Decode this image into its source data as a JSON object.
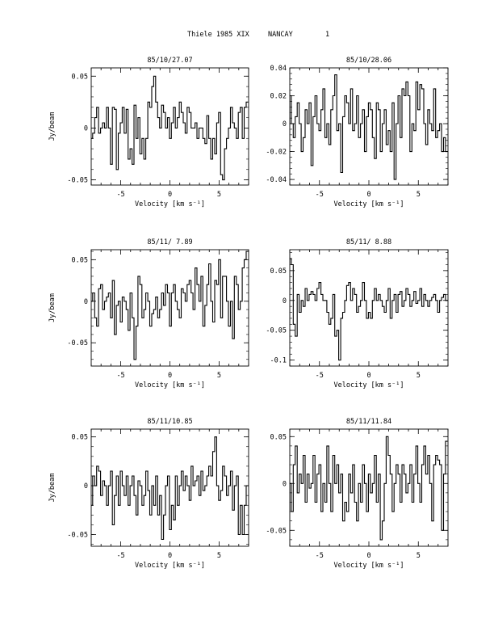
{
  "page_title": {
    "left": "Thiele 1985 XIX",
    "site": "NANCAY",
    "page": "1"
  },
  "chart_data": [
    {
      "type": "line",
      "title": "85/10/27.07",
      "xlabel": "Velocity [km s⁻¹]",
      "ylabel": "Jy/beam",
      "xlim": [
        -8,
        8
      ],
      "ylim": [
        -0.055,
        0.058
      ],
      "xticks": [
        "-5",
        "0",
        "5"
      ],
      "ytick_values": [
        0.05,
        0,
        -0.05
      ],
      "ytick_labels": [
        "0.05",
        "0",
        "-0.05"
      ],
      "x": [
        -7.95,
        -7.75,
        -7.55,
        -7.35,
        -7.15,
        -6.95,
        -6.75,
        -6.55,
        -6.35,
        -6.15,
        -5.95,
        -5.75,
        -5.55,
        -5.35,
        -5.15,
        -4.95,
        -4.75,
        -4.55,
        -4.35,
        -4.15,
        -3.95,
        -3.75,
        -3.55,
        -3.35,
        -3.15,
        -2.95,
        -2.75,
        -2.55,
        -2.35,
        -2.15,
        -1.95,
        -1.75,
        -1.55,
        -1.35,
        -1.15,
        -0.95,
        -0.75,
        -0.55,
        -0.35,
        -0.15,
        0.05,
        0.25,
        0.45,
        0.65,
        0.85,
        1.05,
        1.25,
        1.45,
        1.65,
        1.85,
        2.05,
        2.25,
        2.45,
        2.65,
        2.85,
        3.05,
        3.25,
        3.45,
        3.65,
        3.85,
        4.05,
        4.25,
        4.45,
        4.65,
        4.85,
        5.05,
        5.25,
        5.45,
        5.65,
        5.85,
        6.05,
        6.25,
        6.45,
        6.65,
        6.85,
        7.05,
        7.25,
        7.45,
        7.65,
        7.85
      ],
      "y": [
        -0.01,
        -0.005,
        0.01,
        0.02,
        -0.005,
        0.0,
        0.005,
        0.0,
        0.02,
        0.0,
        -0.035,
        0.02,
        0.018,
        -0.04,
        -0.005,
        0.005,
        0.02,
        -0.005,
        0.018,
        -0.03,
        -0.02,
        -0.035,
        0.022,
        -0.01,
        0.01,
        -0.025,
        -0.01,
        -0.03,
        -0.01,
        0.025,
        0.02,
        0.04,
        0.05,
        0.025,
        0.01,
        0.0,
        0.022,
        0.015,
        0.0,
        0.01,
        -0.01,
        0.005,
        0.02,
        0.0,
        0.01,
        0.025,
        0.015,
        0.005,
        -0.005,
        0.02,
        0.015,
        0.0,
        0.0,
        0.005,
        -0.01,
        0.0,
        0.0,
        -0.01,
        -0.015,
        0.012,
        -0.01,
        -0.03,
        -0.01,
        -0.025,
        0.005,
        0.015,
        -0.045,
        -0.05,
        -0.02,
        -0.01,
        0.0,
        0.02,
        0.005,
        0.0,
        -0.01,
        0.015,
        0.02,
        -0.01,
        0.02,
        0.025
      ]
    },
    {
      "type": "line",
      "title": "85/10/28.06",
      "xlabel": "Velocity [km s⁻¹]",
      "ylabel": "",
      "xlim": [
        -8,
        8
      ],
      "ylim": [
        -0.044,
        0.04
      ],
      "xticks": [
        "-5",
        "0",
        "5"
      ],
      "ytick_values": [
        0.04,
        0.02,
        0,
        -0.02,
        -0.04
      ],
      "ytick_labels": [
        "0.04",
        "0.02",
        "0",
        "-0.02",
        "-0.04"
      ],
      "x": [
        -7.95,
        -7.75,
        -7.55,
        -7.35,
        -7.15,
        -6.95,
        -6.75,
        -6.55,
        -6.35,
        -6.15,
        -5.95,
        -5.75,
        -5.55,
        -5.35,
        -5.15,
        -4.95,
        -4.75,
        -4.55,
        -4.35,
        -4.15,
        -3.95,
        -3.75,
        -3.55,
        -3.35,
        -3.15,
        -2.95,
        -2.75,
        -2.55,
        -2.35,
        -2.15,
        -1.95,
        -1.75,
        -1.55,
        -1.35,
        -1.15,
        -0.95,
        -0.75,
        -0.55,
        -0.35,
        -0.15,
        0.05,
        0.25,
        0.45,
        0.65,
        0.85,
        1.05,
        1.25,
        1.45,
        1.65,
        1.85,
        2.05,
        2.25,
        2.45,
        2.65,
        2.85,
        3.05,
        3.25,
        3.45,
        3.65,
        3.85,
        4.05,
        4.25,
        4.45,
        4.65,
        4.85,
        5.05,
        5.25,
        5.45,
        5.65,
        5.85,
        6.05,
        6.25,
        6.45,
        6.65,
        6.85,
        7.05,
        7.25,
        7.45,
        7.65,
        7.85
      ],
      "y": [
        0.02,
        0.0,
        -0.01,
        0.005,
        0.015,
        0.0,
        -0.02,
        -0.01,
        0.01,
        0.0,
        0.015,
        -0.03,
        0.005,
        0.02,
        0.0,
        -0.005,
        0.01,
        0.025,
        -0.01,
        0.0,
        -0.015,
        0.01,
        0.02,
        0.035,
        -0.005,
        0.0,
        -0.035,
        0.005,
        0.02,
        0.015,
        0.0,
        0.025,
        -0.005,
        0.0,
        0.02,
        -0.01,
        0.0,
        0.01,
        -0.02,
        0.005,
        0.015,
        0.01,
        -0.01,
        -0.025,
        0.015,
        0.01,
        -0.02,
        0.0,
        0.01,
        -0.015,
        -0.005,
        -0.02,
        0.015,
        -0.04,
        0.0,
        0.02,
        -0.01,
        0.025,
        0.02,
        0.03,
        0.02,
        -0.02,
        0.0,
        -0.005,
        0.03,
        0.01,
        0.028,
        0.025,
        0.0,
        -0.015,
        0.01,
        0.0,
        -0.005,
        0.025,
        -0.01,
        -0.005,
        0.0,
        -0.02,
        -0.01,
        -0.02
      ]
    },
    {
      "type": "line",
      "title": "85/11/ 7.89",
      "xlabel": "Velocity [km s⁻¹]",
      "ylabel": "Jy/beam",
      "xlim": [
        -8,
        8
      ],
      "ylim": [
        -0.078,
        0.062
      ],
      "xticks": [
        "-5",
        "0",
        "5"
      ],
      "ytick_values": [
        0.05,
        0,
        -0.05
      ],
      "ytick_labels": [
        "0.05",
        "0",
        "-0.05"
      ],
      "x": [
        -7.95,
        -7.75,
        -7.55,
        -7.35,
        -7.15,
        -6.95,
        -6.75,
        -6.55,
        -6.35,
        -6.15,
        -5.95,
        -5.75,
        -5.55,
        -5.35,
        -5.15,
        -4.95,
        -4.75,
        -4.55,
        -4.35,
        -4.15,
        -3.95,
        -3.75,
        -3.55,
        -3.35,
        -3.15,
        -2.95,
        -2.75,
        -2.55,
        -2.35,
        -2.15,
        -1.95,
        -1.75,
        -1.55,
        -1.35,
        -1.15,
        -0.95,
        -0.75,
        -0.55,
        -0.35,
        -0.15,
        0.05,
        0.25,
        0.45,
        0.65,
        0.85,
        1.05,
        1.25,
        1.45,
        1.65,
        1.85,
        2.05,
        2.25,
        2.45,
        2.65,
        2.85,
        3.05,
        3.25,
        3.45,
        3.65,
        3.85,
        4.05,
        4.25,
        4.45,
        4.65,
        4.85,
        5.05,
        5.25,
        5.45,
        5.65,
        5.85,
        6.05,
        6.25,
        6.45,
        6.65,
        6.85,
        7.05,
        7.25,
        7.45,
        7.65,
        7.85
      ],
      "y": [
        0.0,
        0.01,
        -0.02,
        -0.03,
        0.015,
        0.02,
        -0.01,
        0.0,
        0.005,
        0.01,
        -0.02,
        0.025,
        -0.04,
        -0.005,
        0.0,
        -0.025,
        0.005,
        0.0,
        -0.01,
        -0.035,
        0.01,
        -0.02,
        -0.07,
        -0.03,
        0.03,
        0.02,
        -0.02,
        -0.01,
        0.01,
        0.0,
        -0.03,
        -0.015,
        -0.01,
        0.005,
        -0.02,
        -0.01,
        0.01,
        -0.005,
        0.02,
        0.01,
        -0.03,
        0.01,
        0.02,
        0.0,
        -0.01,
        -0.02,
        0.015,
        0.01,
        0.0,
        0.02,
        0.025,
        0.01,
        -0.01,
        0.04,
        0.02,
        0.0,
        0.03,
        -0.03,
        -0.005,
        0.02,
        0.045,
        0.0,
        -0.025,
        0.025,
        0.02,
        0.05,
        -0.02,
        0.03,
        0.03,
        0.0,
        -0.03,
        0.0,
        -0.045,
        0.03,
        0.02,
        -0.01,
        0.0,
        0.04,
        0.05,
        0.06
      ]
    },
    {
      "type": "line",
      "title": "85/11/ 8.88",
      "xlabel": "Velocity [km s⁻¹]",
      "ylabel": "",
      "xlim": [
        -8,
        8
      ],
      "ylim": [
        -0.11,
        0.085
      ],
      "xticks": [
        "-5",
        "0",
        "5"
      ],
      "ytick_values": [
        0.05,
        0,
        -0.05,
        -0.1
      ],
      "ytick_labels": [
        "0.05",
        "0",
        "-0.05",
        "-0.1"
      ],
      "x": [
        -7.95,
        -7.75,
        -7.55,
        -7.35,
        -7.15,
        -6.95,
        -6.75,
        -6.55,
        -6.35,
        -6.15,
        -5.95,
        -5.75,
        -5.55,
        -5.35,
        -5.15,
        -4.95,
        -4.75,
        -4.55,
        -4.35,
        -4.15,
        -3.95,
        -3.75,
        -3.55,
        -3.35,
        -3.15,
        -2.95,
        -2.75,
        -2.55,
        -2.35,
        -2.15,
        -1.95,
        -1.75,
        -1.55,
        -1.35,
        -1.15,
        -0.95,
        -0.75,
        -0.55,
        -0.35,
        -0.15,
        0.05,
        0.25,
        0.45,
        0.65,
        0.85,
        1.05,
        1.25,
        1.45,
        1.65,
        1.85,
        2.05,
        2.25,
        2.45,
        2.65,
        2.85,
        3.05,
        3.25,
        3.45,
        3.65,
        3.85,
        4.05,
        4.25,
        4.45,
        4.65,
        4.85,
        5.05,
        5.25,
        5.45,
        5.65,
        5.85,
        6.05,
        6.25,
        6.45,
        6.65,
        6.85,
        7.05,
        7.25,
        7.45,
        7.65,
        7.85
      ],
      "y": [
        0.07,
        0.06,
        -0.04,
        -0.06,
        0.01,
        -0.02,
        0.0,
        -0.01,
        0.02,
        0.0,
        0.01,
        0.015,
        0.01,
        0.0,
        0.02,
        0.03,
        0.01,
        0.0,
        0.0,
        -0.02,
        -0.04,
        -0.03,
        0.01,
        -0.06,
        -0.05,
        -0.1,
        -0.03,
        -0.02,
        0.0,
        0.025,
        0.03,
        0.0,
        0.02,
        0.01,
        -0.02,
        -0.01,
        0.0,
        0.03,
        0.0,
        -0.03,
        -0.02,
        -0.03,
        0.0,
        0.02,
        0.0,
        0.01,
        0.0,
        -0.01,
        -0.02,
        0.0,
        0.02,
        -0.03,
        0.0,
        0.01,
        -0.02,
        0.01,
        0.015,
        -0.01,
        0.0,
        0.02,
        0.01,
        -0.01,
        0.0,
        0.015,
        -0.005,
        0.0,
        0.02,
        -0.01,
        0.01,
        0.0,
        -0.01,
        0.0,
        0.005,
        0.01,
        0.0,
        -0.02,
        0.0,
        0.005,
        0.01,
        0.0
      ]
    },
    {
      "type": "line",
      "title": "85/11/10.85",
      "xlabel": "Velocity [km s⁻¹]",
      "ylabel": "Jy/beam",
      "xlim": [
        -8,
        8
      ],
      "ylim": [
        -0.062,
        0.058
      ],
      "xticks": [
        "-5",
        "0",
        "5"
      ],
      "ytick_values": [
        0.05,
        0,
        -0.05
      ],
      "ytick_labels": [
        "0.05",
        "0",
        "-0.05"
      ],
      "x": [
        -7.95,
        -7.75,
        -7.55,
        -7.35,
        -7.15,
        -6.95,
        -6.75,
        -6.55,
        -6.35,
        -6.15,
        -5.95,
        -5.75,
        -5.55,
        -5.35,
        -5.15,
        -4.95,
        -4.75,
        -4.55,
        -4.35,
        -4.15,
        -3.95,
        -3.75,
        -3.55,
        -3.35,
        -3.15,
        -2.95,
        -2.75,
        -2.55,
        -2.35,
        -2.15,
        -1.95,
        -1.75,
        -1.55,
        -1.35,
        -1.15,
        -0.95,
        -0.75,
        -0.55,
        -0.35,
        -0.15,
        0.05,
        0.25,
        0.45,
        0.65,
        0.85,
        1.05,
        1.25,
        1.45,
        1.65,
        1.85,
        2.05,
        2.25,
        2.45,
        2.65,
        2.85,
        3.05,
        3.25,
        3.45,
        3.65,
        3.85,
        4.05,
        4.25,
        4.45,
        4.65,
        4.85,
        5.05,
        5.25,
        5.45,
        5.65,
        5.85,
        6.05,
        6.25,
        6.45,
        6.65,
        6.85,
        7.05,
        7.25,
        7.45,
        7.65,
        7.85
      ],
      "y": [
        -0.02,
        0.01,
        0.0,
        0.02,
        0.015,
        -0.01,
        0.005,
        0.0,
        -0.02,
        0.0,
        0.015,
        -0.04,
        -0.01,
        0.01,
        -0.02,
        0.015,
        0.0,
        -0.01,
        0.01,
        -0.02,
        0.0,
        0.01,
        -0.01,
        -0.03,
        0.005,
        0.0,
        -0.02,
        -0.01,
        0.015,
        -0.005,
        -0.03,
        0.0,
        -0.02,
        0.01,
        -0.03,
        -0.01,
        -0.055,
        -0.03,
        0.0,
        0.01,
        -0.045,
        -0.02,
        -0.035,
        0.01,
        -0.02,
        0.0,
        0.015,
        -0.005,
        0.01,
        0.0,
        -0.015,
        0.02,
        0.0,
        0.005,
        0.01,
        -0.01,
        0.015,
        -0.005,
        0.0,
        0.01,
        0.02,
        0.01,
        0.035,
        0.05,
        0.0,
        -0.015,
        -0.005,
        0.02,
        0.01,
        -0.01,
        0.0,
        0.015,
        -0.025,
        0.0,
        0.01,
        -0.05,
        -0.02,
        -0.05,
        -0.02,
        0.0
      ]
    },
    {
      "type": "line",
      "title": "85/11/11.84",
      "xlabel": "Velocity [km s⁻¹]",
      "ylabel": "",
      "xlim": [
        -8,
        8
      ],
      "ylim": [
        -0.067,
        0.058
      ],
      "xticks": [
        "-5",
        "0",
        "5"
      ],
      "ytick_values": [
        0.05,
        0,
        -0.05
      ],
      "ytick_labels": [
        "0.05",
        "0",
        "-0.05"
      ],
      "x": [
        -7.95,
        -7.75,
        -7.55,
        -7.35,
        -7.15,
        -6.95,
        -6.75,
        -6.55,
        -6.35,
        -6.15,
        -5.95,
        -5.75,
        -5.55,
        -5.35,
        -5.15,
        -4.95,
        -4.75,
        -4.55,
        -4.35,
        -4.15,
        -3.95,
        -3.75,
        -3.55,
        -3.35,
        -3.15,
        -2.95,
        -2.75,
        -2.55,
        -2.35,
        -2.15,
        -1.95,
        -1.75,
        -1.55,
        -1.35,
        -1.15,
        -0.95,
        -0.75,
        -0.55,
        -0.35,
        -0.15,
        0.05,
        0.25,
        0.45,
        0.65,
        0.85,
        1.05,
        1.25,
        1.45,
        1.65,
        1.85,
        2.05,
        2.25,
        2.45,
        2.65,
        2.85,
        3.05,
        3.25,
        3.45,
        3.65,
        3.85,
        4.05,
        4.25,
        4.45,
        4.65,
        4.85,
        5.05,
        5.25,
        5.45,
        5.65,
        5.85,
        6.05,
        6.25,
        6.45,
        6.65,
        6.85,
        7.05,
        7.25,
        7.45,
        7.65,
        7.85
      ],
      "y": [
        0.0,
        -0.03,
        0.02,
        0.04,
        -0.01,
        0.01,
        0.0,
        0.03,
        -0.02,
        0.01,
        -0.005,
        0.0,
        0.03,
        -0.02,
        0.01,
        0.02,
        -0.03,
        0.0,
        -0.02,
        0.04,
        0.0,
        -0.03,
        0.03,
        0.0,
        0.02,
        -0.01,
        0.01,
        -0.04,
        -0.02,
        -0.03,
        0.01,
        -0.01,
        0.02,
        -0.02,
        -0.04,
        0.0,
        -0.02,
        0.02,
        0.0,
        -0.03,
        0.01,
        -0.01,
        0.0,
        0.03,
        -0.02,
        0.01,
        -0.06,
        -0.04,
        0.0,
        0.05,
        0.03,
        0.01,
        -0.03,
        0.0,
        0.02,
        0.01,
        -0.02,
        0.02,
        0.01,
        -0.01,
        0.0,
        0.02,
        -0.02,
        0.01,
        0.04,
        0.0,
        -0.02,
        0.02,
        0.04,
        0.01,
        0.03,
        0.0,
        -0.04,
        0.02,
        0.03,
        0.025,
        0.02,
        -0.05,
        0.01,
        0.045
      ]
    }
  ]
}
